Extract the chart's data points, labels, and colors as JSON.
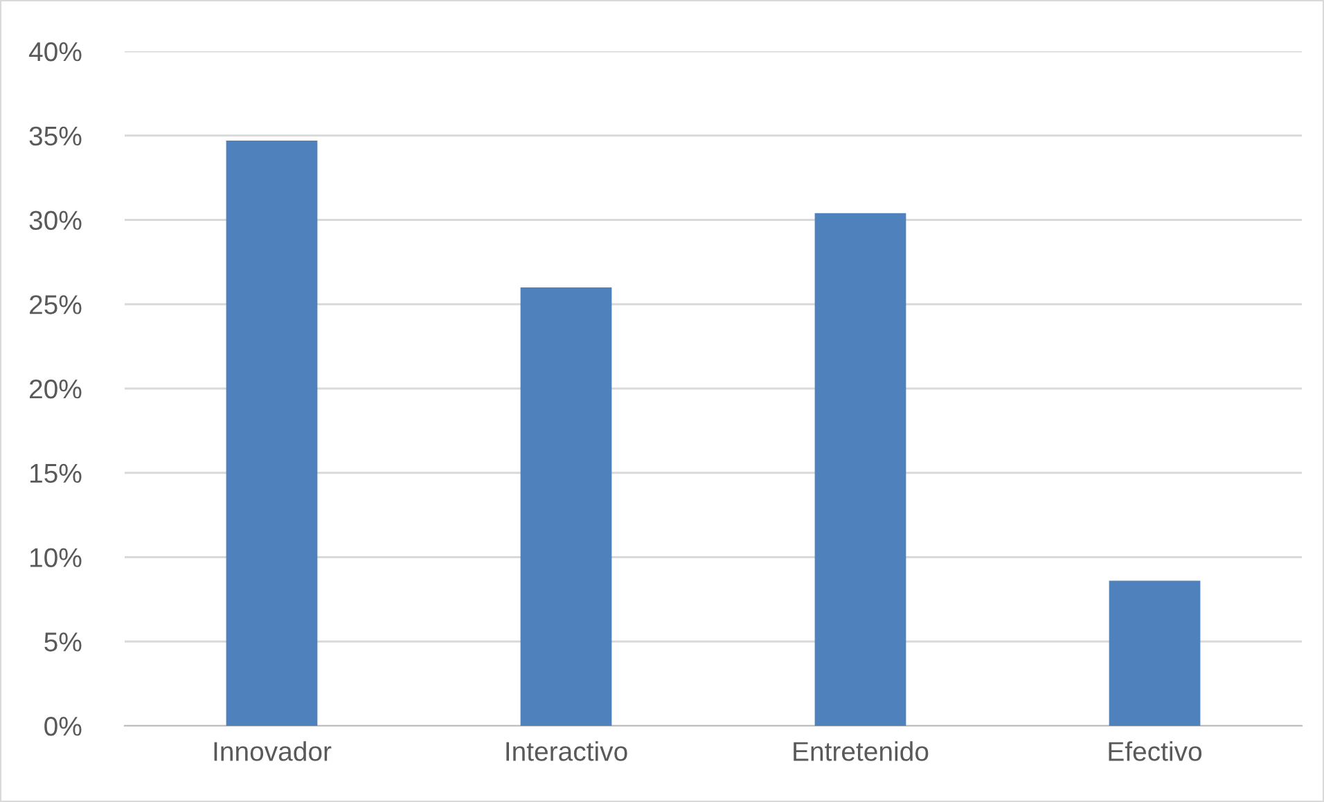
{
  "chart_data": {
    "type": "bar",
    "categories": [
      "Innovador",
      "Interactivo",
      "Entretenido",
      "Efectivo"
    ],
    "values": [
      34.7,
      26.0,
      30.4,
      8.6
    ],
    "color": "#4f81bd",
    "ylim": [
      0,
      40
    ],
    "yticks": [
      {
        "value": 0,
        "label": "0%"
      },
      {
        "value": 5,
        "label": "5%"
      },
      {
        "value": 10,
        "label": "10%"
      },
      {
        "value": 15,
        "label": "15%"
      },
      {
        "value": 20,
        "label": "20%"
      },
      {
        "value": 25,
        "label": "25%"
      },
      {
        "value": 30,
        "label": "30%"
      },
      {
        "value": 35,
        "label": "35%"
      },
      {
        "value": 40,
        "label": "40%"
      }
    ],
    "grid": "y"
  }
}
